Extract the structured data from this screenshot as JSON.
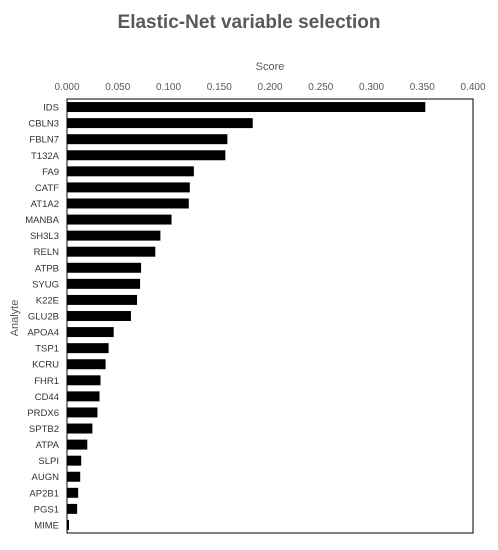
{
  "chart_data": {
    "type": "bar",
    "orientation": "horizontal",
    "title": "Elastic-Net variable selection",
    "xlabel": "Score",
    "ylabel": "Analyte",
    "xlim": [
      0,
      0.4
    ],
    "xticks": [
      "0.000",
      "0.050",
      "0.100",
      "0.150",
      "0.200",
      "0.250",
      "0.300",
      "0.350",
      "0.400"
    ],
    "x_axis_position": "top",
    "grid": false,
    "legend": "none",
    "bar_color": "#000000",
    "categories": [
      "IDS",
      "CBLN3",
      "FBLN7",
      "T132A",
      "FA9",
      "CATF",
      "AT1A2",
      "MANBA",
      "SH3L3",
      "RELN",
      "ATPB",
      "SYUG",
      "K22E",
      "GLU2B",
      "APOA4",
      "TSP1",
      "KCRU",
      "FHR1",
      "CD44",
      "PRDX6",
      "SPTB2",
      "ATPA",
      "SLPI",
      "AUGN",
      "AP2B1",
      "PGS1",
      "MIME"
    ],
    "values": [
      0.353,
      0.183,
      0.158,
      0.156,
      0.125,
      0.121,
      0.12,
      0.103,
      0.092,
      0.087,
      0.073,
      0.072,
      0.069,
      0.063,
      0.046,
      0.041,
      0.038,
      0.033,
      0.032,
      0.03,
      0.025,
      0.02,
      0.014,
      0.013,
      0.011,
      0.01,
      0.002
    ]
  }
}
